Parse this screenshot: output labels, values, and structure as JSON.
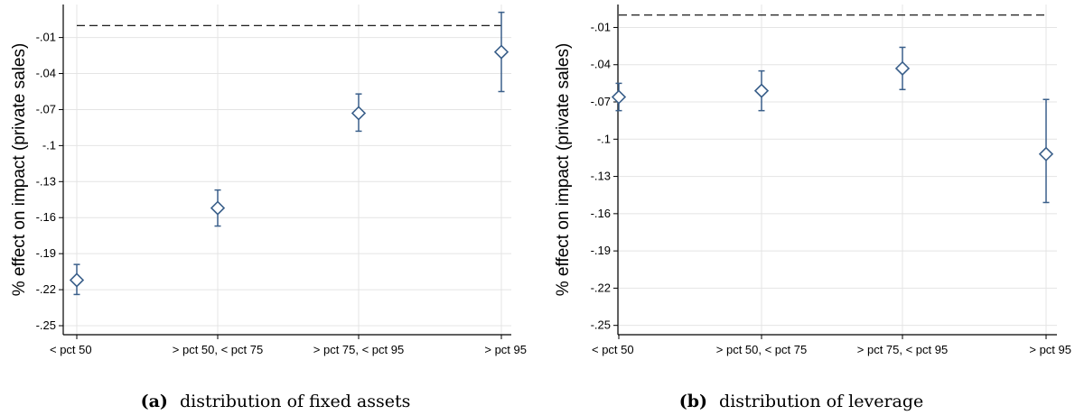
{
  "chart_data": [
    {
      "type": "scatter",
      "caption_tag": "(a)",
      "caption_text": "distribution of fixed assets",
      "ylabel": "% effect on impact (private sales)",
      "xlabel": "",
      "categories": [
        "< pct 50",
        "> pct 50, < pct 75",
        "> pct 75, < pct 95",
        "> pct 95"
      ],
      "y_ticks": [
        -0.01,
        -0.04,
        -0.07,
        -0.1,
        -0.13,
        -0.16,
        -0.19,
        -0.22,
        -0.25
      ],
      "y_tick_labels": [
        "-.01",
        "-.04",
        "-.07",
        "-.1",
        "-.13",
        "-.16",
        "-.19",
        "-.22",
        "-.25"
      ],
      "ylim": [
        -0.2575,
        0.0175
      ],
      "grid": true,
      "reference_line": 0,
      "points": [
        {
          "value": -0.212,
          "ci_low": -0.224,
          "ci_high": -0.199
        },
        {
          "value": -0.152,
          "ci_low": -0.167,
          "ci_high": -0.137
        },
        {
          "value": -0.073,
          "ci_low": -0.088,
          "ci_high": -0.057
        },
        {
          "value": -0.022,
          "ci_low": -0.055,
          "ci_high": 0.011
        }
      ],
      "marker_color": "#3a5f8a"
    },
    {
      "type": "scatter",
      "caption_tag": "(b)",
      "caption_text": "distribution of leverage",
      "ylabel": "% effect on impact (private sales)",
      "xlabel": "",
      "categories": [
        "< pct 50",
        "> pct 50, < pct 75",
        "> pct 75, < pct 95",
        "> pct 95"
      ],
      "y_ticks": [
        -0.01,
        -0.04,
        -0.07,
        -0.1,
        -0.13,
        -0.16,
        -0.19,
        -0.22,
        -0.25
      ],
      "y_tick_labels": [
        "-.01",
        "-.04",
        "-.07",
        "-.1",
        "-.13",
        "-.16",
        "-.19",
        "-.22",
        "-.25"
      ],
      "ylim": [
        -0.2575,
        0.0085
      ],
      "grid": true,
      "reference_line": 0,
      "points": [
        {
          "value": -0.066,
          "ci_low": -0.077,
          "ci_high": -0.055
        },
        {
          "value": -0.061,
          "ci_low": -0.077,
          "ci_high": -0.045
        },
        {
          "value": -0.043,
          "ci_low": -0.06,
          "ci_high": -0.026
        },
        {
          "value": -0.112,
          "ci_low": -0.151,
          "ci_high": -0.068
        }
      ],
      "marker_color": "#3a5f8a"
    }
  ]
}
